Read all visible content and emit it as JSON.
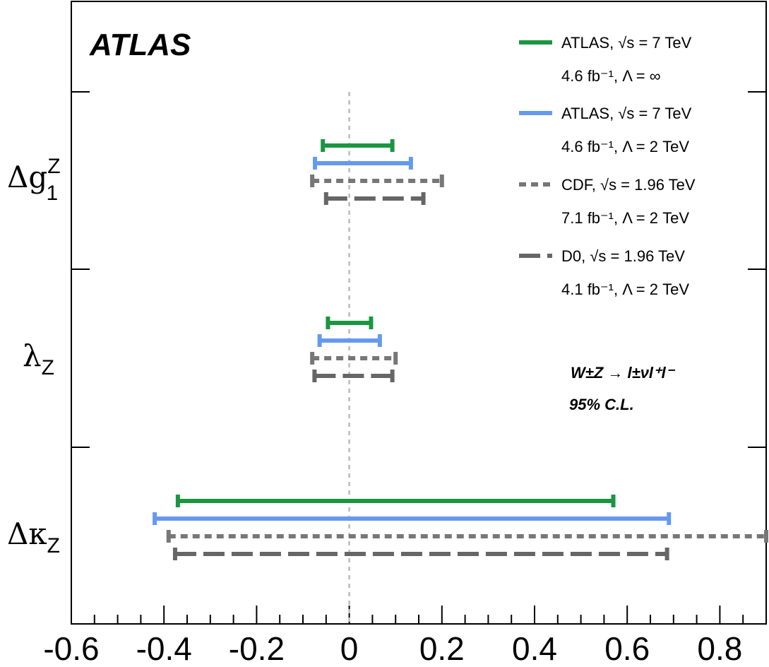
{
  "chart_data": {
    "type": "interval",
    "brand": "ATLAS",
    "xlim": [
      -0.6,
      0.9
    ],
    "x_ticks": [
      "-0.6",
      "-0.4",
      "-0.2",
      "0",
      "0.2",
      "0.4",
      "0.6",
      "0.8"
    ],
    "x_tick_values": [
      -0.6,
      -0.4,
      -0.2,
      0,
      0.2,
      0.4,
      0.6,
      0.8
    ],
    "reference_line": 0,
    "parameters": [
      {
        "key": "dg1z",
        "symbol": "Δg",
        "sup": "Z",
        "sub": "1"
      },
      {
        "key": "lz",
        "symbol": "λ",
        "sup": "",
        "sub": "Z"
      },
      {
        "key": "dkz",
        "symbol": "Δκ",
        "sup": "",
        "sub": "Z"
      }
    ],
    "series": [
      {
        "color": "#1a9641",
        "style": "solid",
        "legend_line1": "ATLAS, √s = 7 TeV",
        "legend_line2": "4.6 fb⁻¹,  Λ = ∞",
        "intervals": {
          "dg1z": [
            -0.057,
            0.093
          ],
          "lz": [
            -0.046,
            0.047
          ],
          "dkz": [
            -0.37,
            0.57
          ]
        }
      },
      {
        "color": "#6699ee",
        "style": "solid",
        "legend_line1": "ATLAS, √s = 7 TeV",
        "legend_line2": "4.6 fb⁻¹,  Λ = 2 TeV",
        "intervals": {
          "dg1z": [
            -0.074,
            0.133
          ],
          "lz": [
            -0.064,
            0.066
          ],
          "dkz": [
            -0.42,
            0.69
          ]
        }
      },
      {
        "color": "#777777",
        "style": "dotted",
        "legend_line1": "CDF, √s = 1.96 TeV",
        "legend_line2": "7.1 fb⁻¹,  Λ = 2 TeV",
        "intervals": {
          "dg1z": [
            -0.08,
            0.2
          ],
          "lz": [
            -0.08,
            0.1
          ],
          "dkz": [
            -0.39,
            0.9
          ]
        }
      },
      {
        "color": "#666666",
        "style": "dashed",
        "legend_line1": "D0, √s = 1.96 TeV",
        "legend_line2": "4.1 fb⁻¹,  Λ = 2 TeV",
        "intervals": {
          "dg1z": [
            -0.05,
            0.16
          ],
          "lz": [
            -0.075,
            0.093
          ],
          "dkz": [
            -0.376,
            0.686
          ]
        }
      }
    ],
    "annotation_process": "W±Z → l±νl⁺l⁻",
    "annotation_cl": "95% C.L."
  }
}
